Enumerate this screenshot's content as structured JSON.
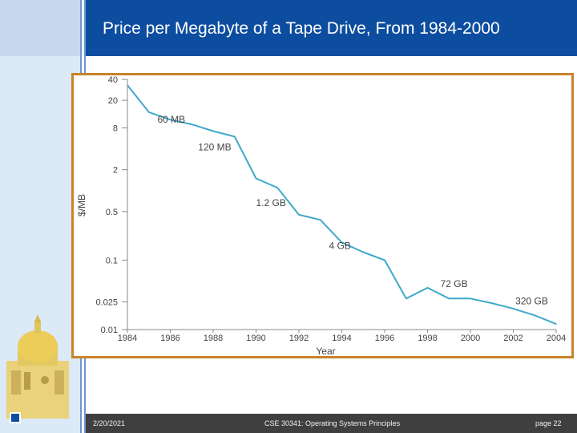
{
  "slide": {
    "title": "Price per Megabyte of a Tape Drive, From 1984-2000",
    "footer_date": "2/20/2021",
    "footer_course": "CSE 30341: Operating Systems Principles",
    "footer_page": "page 22"
  },
  "colors": {
    "title_bar": "#0d4d9f",
    "line": "#3fa9c9",
    "frame": "#c9832a",
    "footer_bar": "#3f3f3f"
  },
  "chart_data": {
    "type": "line",
    "title": "",
    "xlabel": "Year",
    "ylabel": "$/MB",
    "yscale": "log",
    "xlim": [
      1984,
      2004
    ],
    "ylim": [
      0.01,
      40
    ],
    "x_ticks": [
      1984,
      1986,
      1988,
      1990,
      1992,
      1994,
      1996,
      1998,
      2000,
      2002,
      2004
    ],
    "y_ticks": [
      {
        "value": 40,
        "label": "40"
      },
      {
        "value": 20,
        "label": "20"
      },
      {
        "value": 8,
        "label": "8"
      },
      {
        "value": 2,
        "label": "2"
      },
      {
        "value": 0.5,
        "label": "0.5"
      },
      {
        "value": 0.1,
        "label": "0.1"
      },
      {
        "value": 0.025,
        "label": "0.025"
      },
      {
        "value": 0.01,
        "label": "0.01"
      }
    ],
    "series": [
      {
        "name": "tape drive",
        "x": [
          1984,
          1985,
          1986,
          1987,
          1988,
          1989,
          1990,
          1991,
          1992,
          1993,
          1994,
          1995,
          1996,
          1997,
          1998,
          1999,
          2000,
          2001,
          2002,
          2003,
          2004
        ],
        "y": [
          33,
          13.5,
          10.5,
          9,
          7.2,
          6,
          1.5,
          1.1,
          0.45,
          0.38,
          0.18,
          0.13,
          0.1,
          0.028,
          0.04,
          0.028,
          0.028,
          0.024,
          0.02,
          0.016,
          0.012
        ]
      }
    ],
    "annotations": [
      {
        "text": "60 MB",
        "x": 1985.4,
        "y": 9.5
      },
      {
        "text": "120 MB",
        "x": 1987.3,
        "y": 3.8
      },
      {
        "text": "1.2 GB",
        "x": 1990.0,
        "y": 0.6
      },
      {
        "text": "4 GB",
        "x": 1993.4,
        "y": 0.145
      },
      {
        "text": "72 GB",
        "x": 1998.6,
        "y": 0.041
      },
      {
        "text": "320 GB",
        "x": 2002.1,
        "y": 0.023
      }
    ]
  }
}
